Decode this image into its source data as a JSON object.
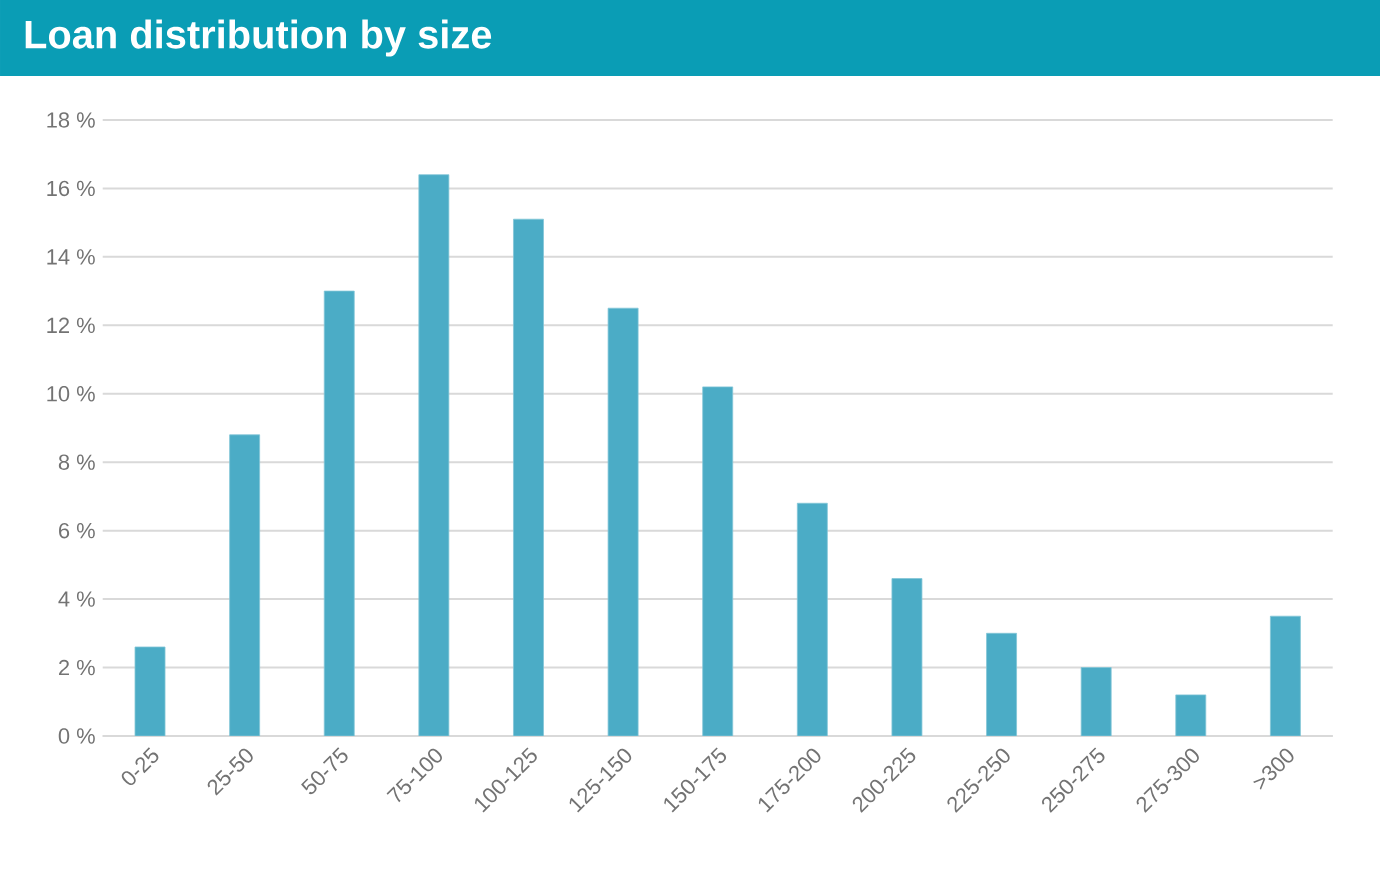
{
  "chart_data": {
    "type": "bar",
    "title": "Loan distribution by size",
    "categories": [
      "0-25",
      "25-50",
      "50-75",
      "75-100",
      "100-125",
      "125-150",
      "150-175",
      "175-200",
      "200-225",
      "225-250",
      "250-275",
      "275-300",
      ">300"
    ],
    "values": [
      2.6,
      8.8,
      13.0,
      16.4,
      15.1,
      12.5,
      10.2,
      6.8,
      4.6,
      3.0,
      2.0,
      1.2,
      3.5
    ],
    "color": "#4bacc6",
    "ylim": [
      0,
      18
    ],
    "yticks": [
      {
        "value": 0,
        "label": "0 %"
      },
      {
        "value": 2,
        "label": "2 %"
      },
      {
        "value": 4,
        "label": "4 %"
      },
      {
        "value": 6,
        "label": "6 %"
      },
      {
        "value": 8,
        "label": "8 %"
      },
      {
        "value": 10,
        "label": "10 %"
      },
      {
        "value": 12,
        "label": "12 %"
      },
      {
        "value": 14,
        "label": "14 %"
      },
      {
        "value": 16,
        "label": "16 %"
      },
      {
        "value": 18,
        "label": "18 %"
      }
    ],
    "grid": "y"
  }
}
